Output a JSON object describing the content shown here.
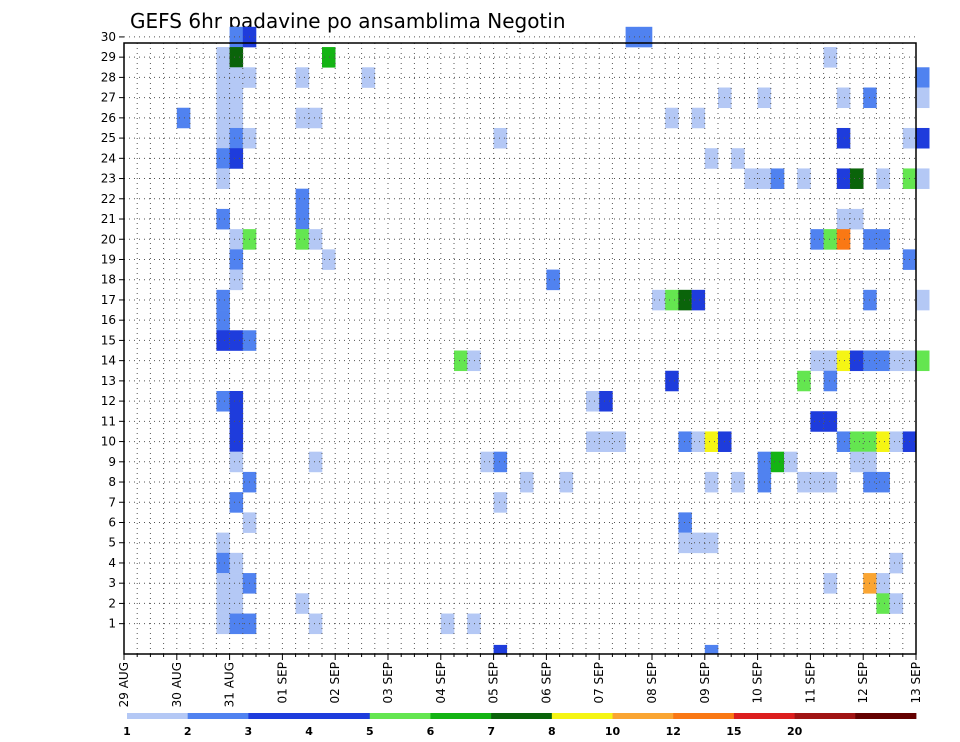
{
  "chart_data": {
    "type": "heatmap",
    "title": "GEFS 6hr padavine po ansamblima Negotin",
    "y_categories": [
      "1",
      "2",
      "3",
      "4",
      "5",
      "6",
      "7",
      "8",
      "9",
      "10",
      "11",
      "12",
      "13",
      "14",
      "15",
      "16",
      "17",
      "18",
      "19",
      "20",
      "21",
      "22",
      "23",
      "24",
      "25",
      "26",
      "27",
      "28",
      "29",
      "30"
    ],
    "x_tick_labels": [
      "29 AUG",
      "30 AUG",
      "31 AUG",
      "01 SEP",
      "02 SEP",
      "03 SEP",
      "04 SEP",
      "05 SEP",
      "06 SEP",
      "07 SEP",
      "08 SEP",
      "09 SEP",
      "10 SEP",
      "11 SEP",
      "12 SEP",
      "13 SEP"
    ],
    "time_steps": 61,
    "steps_per_day": 4,
    "grid": true,
    "color_scale": {
      "levels": [
        "1",
        "2",
        "3",
        "4",
        "5",
        "6",
        "7",
        "8",
        "10",
        "12",
        "15",
        "20"
      ],
      "colors": [
        "#b4c8f5",
        "#5082f0",
        "#1e3cdc",
        "#1e3cdc",
        "#64e650",
        "#14b414",
        "#0a640a",
        "#f5f514",
        "#faa532",
        "#fa7814",
        "#dc1e1e",
        "#a01414",
        "#640000"
      ]
    },
    "cells": [
      [
        8,
        30,
        2
      ],
      [
        9,
        30,
        3
      ],
      [
        38,
        30,
        2
      ],
      [
        39,
        30,
        2
      ],
      [
        7,
        29,
        1
      ],
      [
        8,
        29,
        7
      ],
      [
        15,
        29,
        6
      ],
      [
        53,
        29,
        1
      ],
      [
        7,
        28,
        1
      ],
      [
        8,
        28,
        1
      ],
      [
        9,
        28,
        1
      ],
      [
        13,
        28,
        1
      ],
      [
        18,
        28,
        1
      ],
      [
        60,
        28,
        2
      ],
      [
        7,
        27,
        1
      ],
      [
        8,
        27,
        1
      ],
      [
        45,
        27,
        1
      ],
      [
        48,
        27,
        1
      ],
      [
        54,
        27,
        1
      ],
      [
        56,
        27,
        2
      ],
      [
        60,
        27,
        1
      ],
      [
        4,
        26,
        2
      ],
      [
        7,
        26,
        1
      ],
      [
        8,
        26,
        1
      ],
      [
        13,
        26,
        1
      ],
      [
        14,
        26,
        1
      ],
      [
        41,
        26,
        1
      ],
      [
        43,
        26,
        1
      ],
      [
        7,
        25,
        1
      ],
      [
        8,
        25,
        2
      ],
      [
        9,
        25,
        1
      ],
      [
        28,
        25,
        1
      ],
      [
        54,
        25,
        3
      ],
      [
        59,
        25,
        1
      ],
      [
        60,
        25,
        3
      ],
      [
        7,
        24,
        2
      ],
      [
        8,
        24,
        3
      ],
      [
        44,
        24,
        1
      ],
      [
        46,
        24,
        1
      ],
      [
        7,
        23,
        1
      ],
      [
        47,
        23,
        1
      ],
      [
        48,
        23,
        1
      ],
      [
        49,
        23,
        2
      ],
      [
        51,
        23,
        1
      ],
      [
        54,
        23,
        3
      ],
      [
        55,
        23,
        7
      ],
      [
        57,
        23,
        1
      ],
      [
        59,
        23,
        5
      ],
      [
        60,
        23,
        1
      ],
      [
        13,
        22,
        2
      ],
      [
        7,
        21,
        2
      ],
      [
        13,
        21,
        2
      ],
      [
        54,
        21,
        1
      ],
      [
        55,
        21,
        1
      ],
      [
        8,
        20,
        1
      ],
      [
        9,
        20,
        5
      ],
      [
        13,
        20,
        5
      ],
      [
        14,
        20,
        1
      ],
      [
        52,
        20,
        2
      ],
      [
        53,
        20,
        5
      ],
      [
        54,
        20,
        10
      ],
      [
        56,
        20,
        2
      ],
      [
        57,
        20,
        2
      ],
      [
        8,
        19,
        2
      ],
      [
        15,
        19,
        1
      ],
      [
        59,
        19,
        2
      ],
      [
        8,
        18,
        1
      ],
      [
        32,
        18,
        2
      ],
      [
        40,
        17,
        1
      ],
      [
        41,
        17,
        5
      ],
      [
        42,
        17,
        7
      ],
      [
        43,
        17,
        3
      ],
      [
        7,
        17,
        2
      ],
      [
        56,
        17,
        2
      ],
      [
        60,
        17,
        1
      ],
      [
        7,
        16,
        2
      ],
      [
        7,
        15,
        3
      ],
      [
        8,
        15,
        3
      ],
      [
        9,
        15,
        2
      ],
      [
        52,
        14,
        1
      ],
      [
        53,
        14,
        1
      ],
      [
        54,
        14,
        8
      ],
      [
        55,
        14,
        3
      ],
      [
        56,
        14,
        2
      ],
      [
        57,
        14,
        2
      ],
      [
        58,
        14,
        1
      ],
      [
        59,
        14,
        1
      ],
      [
        60,
        14,
        5
      ],
      [
        25,
        14,
        5
      ],
      [
        26,
        14,
        1
      ],
      [
        41,
        13,
        3
      ],
      [
        51,
        13,
        5
      ],
      [
        53,
        13,
        2
      ],
      [
        7,
        12,
        2
      ],
      [
        8,
        12,
        3
      ],
      [
        35,
        12,
        1
      ],
      [
        36,
        12,
        3
      ],
      [
        8,
        11,
        3
      ],
      [
        52,
        11,
        3
      ],
      [
        53,
        11,
        3
      ],
      [
        8,
        10,
        3
      ],
      [
        35,
        10,
        1
      ],
      [
        36,
        10,
        1
      ],
      [
        37,
        10,
        1
      ],
      [
        42,
        10,
        2
      ],
      [
        43,
        10,
        1
      ],
      [
        44,
        10,
        8
      ],
      [
        45,
        10,
        3
      ],
      [
        54,
        10,
        2
      ],
      [
        55,
        10,
        5
      ],
      [
        56,
        10,
        5
      ],
      [
        57,
        10,
        8
      ],
      [
        58,
        10,
        1
      ],
      [
        59,
        10,
        3
      ],
      [
        8,
        9,
        1
      ],
      [
        14,
        9,
        1
      ],
      [
        27,
        9,
        1
      ],
      [
        28,
        9,
        2
      ],
      [
        48,
        9,
        2
      ],
      [
        49,
        9,
        6
      ],
      [
        50,
        9,
        1
      ],
      [
        55,
        9,
        1
      ],
      [
        56,
        9,
        1
      ],
      [
        9,
        8,
        2
      ],
      [
        30,
        8,
        1
      ],
      [
        33,
        8,
        1
      ],
      [
        44,
        8,
        1
      ],
      [
        46,
        8,
        1
      ],
      [
        48,
        8,
        2
      ],
      [
        51,
        8,
        1
      ],
      [
        52,
        8,
        1
      ],
      [
        53,
        8,
        1
      ],
      [
        56,
        8,
        2
      ],
      [
        57,
        8,
        2
      ],
      [
        8,
        7,
        2
      ],
      [
        28,
        7,
        1
      ],
      [
        9,
        6,
        1
      ],
      [
        42,
        6,
        2
      ],
      [
        7,
        5,
        1
      ],
      [
        42,
        5,
        1
      ],
      [
        43,
        5,
        1
      ],
      [
        44,
        5,
        1
      ],
      [
        7,
        4,
        2
      ],
      [
        8,
        4,
        1
      ],
      [
        58,
        4,
        1
      ],
      [
        7,
        3,
        1
      ],
      [
        8,
        3,
        1
      ],
      [
        9,
        3,
        2
      ],
      [
        53,
        3,
        1
      ],
      [
        56,
        3,
        9
      ],
      [
        57,
        3,
        1
      ],
      [
        7,
        2,
        1
      ],
      [
        8,
        2,
        1
      ],
      [
        13,
        2,
        1
      ],
      [
        57,
        2,
        5
      ],
      [
        58,
        2,
        1
      ],
      [
        7,
        1,
        1
      ],
      [
        8,
        1,
        2
      ],
      [
        9,
        1,
        2
      ],
      [
        14,
        1,
        1
      ],
      [
        24,
        1,
        1
      ],
      [
        26,
        1,
        1
      ],
      [
        28,
        0,
        3
      ],
      [
        44,
        0,
        2
      ]
    ]
  }
}
